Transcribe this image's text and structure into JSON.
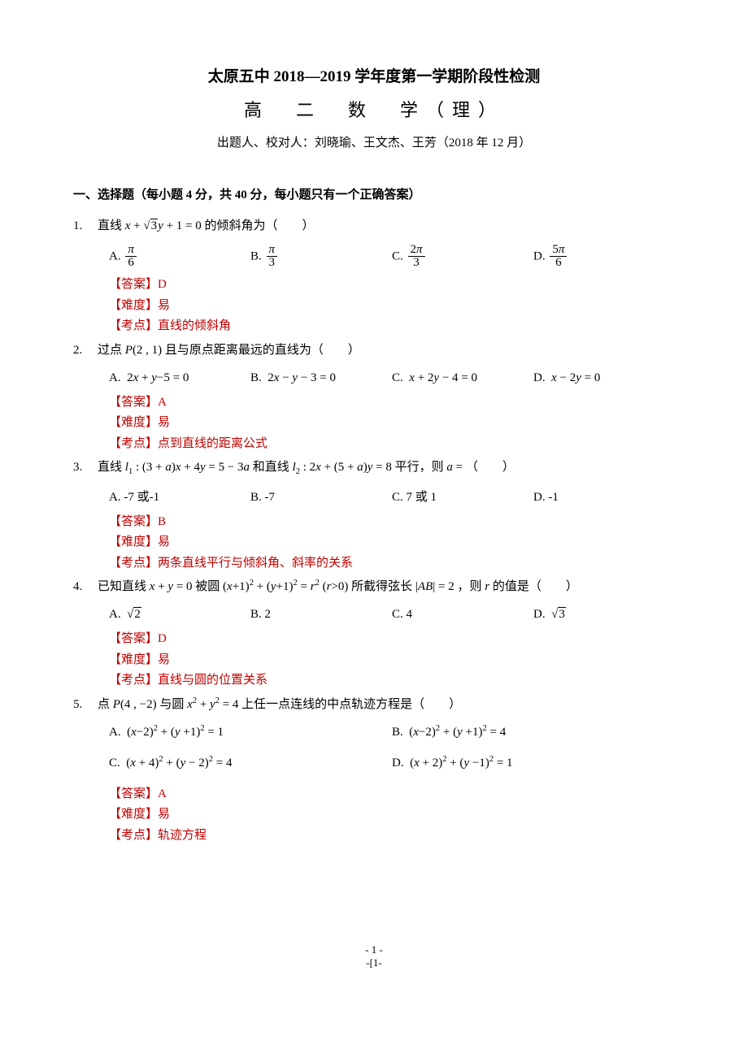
{
  "header": {
    "title": "太原五中 2018—2019 学年度第一学期阶段性检测",
    "subtitle": "高　二　数　学（理）",
    "authors": "出题人、校对人：刘晓瑜、王文杰、王芳（2018 年 12 月）"
  },
  "section_header": "一、选择题（每小题 4 分，共 40 分，每小题只有一个正确答案）",
  "questions": [
    {
      "num": "1.",
      "stem_prefix": "直线 ",
      "stem_math": "x + √3 y + 1 = 0",
      "stem_suffix": " 的倾斜角为（　　）",
      "choices": [
        "A. π/6",
        "B. π/3",
        "C. 2π/3",
        "D. 5π/6"
      ],
      "answer": "【答案】D",
      "difficulty": "【难度】易",
      "topic": "【考点】直线的倾斜角"
    },
    {
      "num": "2.",
      "stem": "过点 P(2, 1) 且与原点距离最远的直线为（　　）",
      "choices": [
        "A.  2x + y − 5 = 0",
        "B.  2x − y − 3 = 0",
        "C.  x + 2y − 4 = 0",
        "D.  x − 2y = 0"
      ],
      "answer": "【答案】A",
      "difficulty": "【难度】易",
      "topic": "【考点】点到直线的距离公式"
    },
    {
      "num": "3.",
      "stem": "直线 l₁ : (3 + a)x + 4y = 5 − 3a 和直线 l₂ : 2x + (5 + a)y = 8 平行，则 a = （　　）",
      "choices": [
        "A. -7 或-1",
        "B. -7",
        "C. 7 或 1",
        "D. -1"
      ],
      "answer": "【答案】B",
      "difficulty": "【难度】易",
      "topic": "【考点】两条直线平行与倾斜角、斜率的关系"
    },
    {
      "num": "4.",
      "stem": "已知直线 x + y = 0 被圆 (x+1)² + (y+1)² = r² (r>0) 所截得弦长 |AB| = 2 ，则 r 的值是（　　）",
      "choices": [
        "A.  √2",
        "B. 2",
        "C. 4",
        "D.  √3"
      ],
      "answer": "【答案】D",
      "difficulty": "【难度】易",
      "topic": "【考点】直线与圆的位置关系"
    },
    {
      "num": "5.",
      "stem": "点 P(4, −2) 与圆 x² + y² = 4 上任一点连线的中点轨迹方程是（　　）",
      "choices": [
        "A.  (x−2)² + (y+1)² = 1",
        "B.  (x−2)² + (y+1)² = 4",
        "C.  (x+4)² + (y−2)² = 4",
        "D.  (x+2)² + (y−1)² = 1"
      ],
      "answer": "【答案】A",
      "difficulty": "【难度】易",
      "topic": "【考点】轨迹方程"
    }
  ],
  "footer": {
    "line1": "- 1 -",
    "line2": "-[1-"
  },
  "colors": {
    "text": "#000000",
    "meta": "#c00000",
    "background": "#ffffff"
  }
}
